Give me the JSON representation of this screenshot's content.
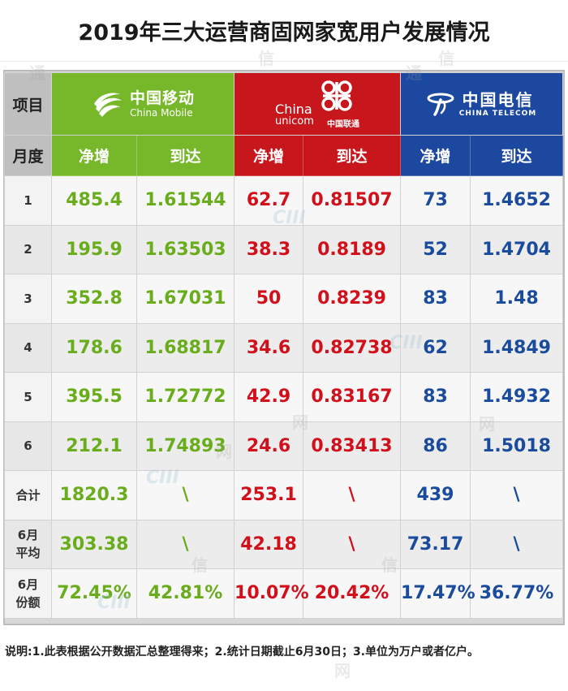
{
  "title": "2019年三大运营商固网家宽用户发展情况",
  "header": {
    "item_label": "项目",
    "month_label": "月度",
    "net_add": "净增",
    "total": "到达"
  },
  "operators": {
    "china_mobile": {
      "cn": "中国移动",
      "en": "China Mobile",
      "color": "#76b82a"
    },
    "china_unicom": {
      "cn": "中国联通",
      "en_line1": "China",
      "en_line2": "unicom",
      "color": "#c8161d"
    },
    "china_telecom": {
      "cn": "中国电信",
      "en": "CHINA TELECOM",
      "color": "#1c48a0"
    }
  },
  "rows": [
    {
      "label": "1",
      "cm_net": "485.4",
      "cm_total": "1.61544",
      "cu_net": "62.7",
      "cu_total": "0.81507",
      "ct_net": "73",
      "ct_total": "1.4652"
    },
    {
      "label": "2",
      "cm_net": "195.9",
      "cm_total": "1.63503",
      "cu_net": "38.3",
      "cu_total": "0.8189",
      "ct_net": "52",
      "ct_total": "1.4704"
    },
    {
      "label": "3",
      "cm_net": "352.8",
      "cm_total": "1.67031",
      "cu_net": "50",
      "cu_total": "0.8239",
      "ct_net": "83",
      "ct_total": "1.48"
    },
    {
      "label": "4",
      "cm_net": "178.6",
      "cm_total": "1.68817",
      "cu_net": "34.6",
      "cu_total": "0.82738",
      "ct_net": "62",
      "ct_total": "1.4849"
    },
    {
      "label": "5",
      "cm_net": "395.5",
      "cm_total": "1.72772",
      "cu_net": "42.9",
      "cu_total": "0.83167",
      "ct_net": "83",
      "ct_total": "1.4932"
    },
    {
      "label": "6",
      "cm_net": "212.1",
      "cm_total": "1.74893",
      "cu_net": "24.6",
      "cu_total": "0.83413",
      "ct_net": "86",
      "ct_total": "1.5018"
    },
    {
      "label": "合计",
      "cm_net": "1820.3",
      "cm_total": "\\",
      "cu_net": "253.1",
      "cu_total": "\\",
      "ct_net": "439",
      "ct_total": "\\"
    },
    {
      "label": "6月平均",
      "cm_net": "303.38",
      "cm_total": "\\",
      "cu_net": "42.18",
      "cu_total": "\\",
      "ct_net": "73.17",
      "ct_total": "\\"
    },
    {
      "label": "6月份额",
      "cm_net": "72.45%",
      "cm_total": "42.81%",
      "cu_net": "10.07%",
      "cu_total": "20.42%",
      "ct_net": "17.47%",
      "ct_total": "36.77%"
    }
  ],
  "footnote": "说明:1.此表根据公开数据汇总整理得来；2.统计日期截止6月30日；3.单位为万户或者亿户。",
  "watermark": {
    "text_a": "通",
    "text_b": "信",
    "text_c": "网",
    "logo": "CIII"
  }
}
